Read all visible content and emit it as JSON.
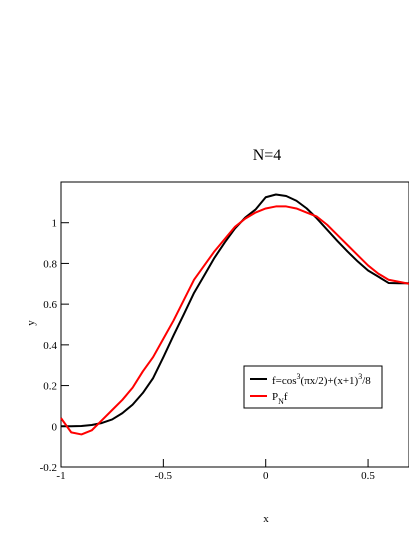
{
  "chart_data": {
    "type": "line",
    "title": "N=4",
    "xlabel": "x",
    "ylabel": "y",
    "xlim": [
      -1,
      0.7
    ],
    "ylim": [
      -0.2,
      1.2
    ],
    "xticks": [
      -1,
      -0.5,
      0,
      0.5
    ],
    "xtick_labels": [
      "-1",
      "-0.5",
      "0",
      "0.5"
    ],
    "yticks": [
      -0.2,
      0,
      0.2,
      0.4,
      0.6,
      0.8,
      1
    ],
    "ytick_labels": [
      "-0.2",
      "0",
      "0.2",
      "0.4",
      "0.6",
      "0.8",
      "1"
    ],
    "grid": false,
    "legend_position": "bottom-right",
    "series": [
      {
        "name": "f=cos^3(πx/2)+(x+1)^3/8",
        "legend_parts": {
          "a": "f=cos",
          "sup1": "3",
          "b": "(πx/2)+(x+1)",
          "sup2": "3",
          "c": "/8"
        },
        "color": "#000000",
        "x": [
          -1,
          -0.95,
          -0.9,
          -0.85,
          -0.8,
          -0.75,
          -0.7,
          -0.65,
          -0.6,
          -0.55,
          -0.5,
          -0.45,
          -0.4,
          -0.35,
          -0.3,
          -0.25,
          -0.2,
          -0.15,
          -0.1,
          -0.05,
          0,
          0.05,
          0.1,
          0.15,
          0.2,
          0.25,
          0.3,
          0.35,
          0.4,
          0.45,
          0.5,
          0.55,
          0.6,
          0.65,
          0.7
        ],
        "y": [
          0,
          0.0,
          0.0016,
          0.0064,
          0.0162,
          0.0336,
          0.0648,
          0.1064,
          0.164,
          0.2366,
          0.3393,
          0.4469,
          0.5498,
          0.6555,
          0.7411,
          0.8283,
          0.903,
          0.9721,
          1.0255,
          1.0644,
          1.125,
          1.1385,
          1.1313,
          1.1079,
          1.0704,
          1.0212,
          0.9658,
          0.9106,
          0.8582,
          0.8093,
          0.7652,
          0.7352,
          0.7041,
          0.7025,
          0.7025
        ]
      },
      {
        "name": "P_Nf",
        "legend_parts": {
          "a": "P",
          "sub": "N",
          "b": "f"
        },
        "color": "#ff0000",
        "x": [
          -1,
          -0.95,
          -0.9,
          -0.85,
          -0.8,
          -0.75,
          -0.7,
          -0.65,
          -0.6,
          -0.55,
          -0.5,
          -0.45,
          -0.4,
          -0.35,
          -0.3,
          -0.25,
          -0.2,
          -0.15,
          -0.1,
          -0.05,
          0,
          0.05,
          0.1,
          0.15,
          0.2,
          0.25,
          0.3,
          0.35,
          0.4,
          0.45,
          0.5,
          0.55,
          0.6,
          0.65,
          0.7
        ],
        "y": [
          0.04,
          -0.03,
          -0.04,
          -0.02,
          0.03,
          0.08,
          0.13,
          0.19,
          0.27,
          0.34,
          0.43,
          0.52,
          0.62,
          0.72,
          0.79,
          0.86,
          0.92,
          0.98,
          1.02,
          1.05,
          1.07,
          1.08,
          1.08,
          1.07,
          1.05,
          1.03,
          0.99,
          0.94,
          0.89,
          0.84,
          0.79,
          0.75,
          0.72,
          0.71,
          0.7
        ]
      }
    ]
  }
}
